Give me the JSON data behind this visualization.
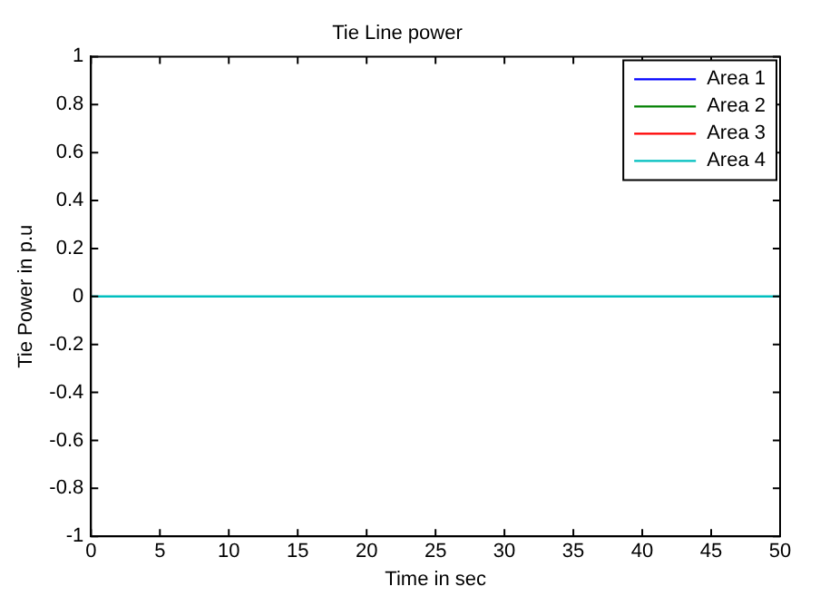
{
  "chart_data": {
    "type": "line",
    "title": "Tie Line power",
    "xlabel": "Time in sec",
    "ylabel": "Tie Power in p.u",
    "x": [
      0,
      50
    ],
    "series": [
      {
        "name": "Area 1",
        "color": "#0000ff",
        "values": [
          null,
          null
        ]
      },
      {
        "name": "Area 2",
        "color": "#008000",
        "values": [
          null,
          null
        ]
      },
      {
        "name": "Area 3",
        "color": "#ff0000",
        "values": [
          null,
          null
        ]
      },
      {
        "name": "Area 4",
        "color": "#00bfbf",
        "values": [
          0,
          0
        ]
      }
    ],
    "xlim": [
      0,
      50
    ],
    "xticks": [
      0,
      5,
      10,
      15,
      20,
      25,
      30,
      35,
      40,
      45,
      50
    ],
    "ylim": [
      -1,
      1
    ],
    "yticks": [
      -1,
      -0.8,
      -0.6,
      -0.4,
      -0.2,
      0,
      0.2,
      0.4,
      0.6,
      0.8,
      1
    ],
    "grid": false,
    "legend": "top right",
    "marker": "none",
    "line_style": "solid"
  }
}
